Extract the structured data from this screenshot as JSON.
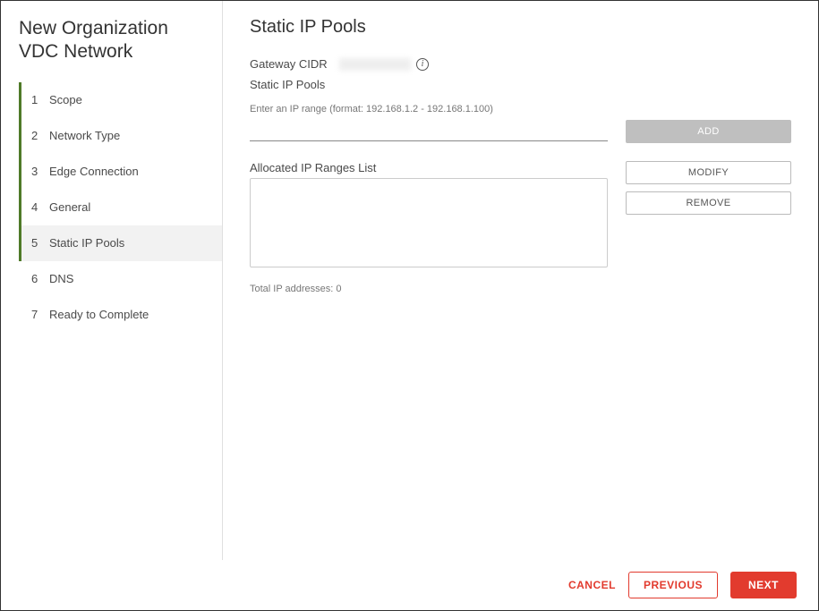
{
  "wizard": {
    "title": "New Organization VDC Network",
    "active_step": 5,
    "steps": [
      {
        "num": "1",
        "label": "Scope"
      },
      {
        "num": "2",
        "label": "Network Type"
      },
      {
        "num": "3",
        "label": "Edge Connection"
      },
      {
        "num": "4",
        "label": "General"
      },
      {
        "num": "5",
        "label": "Static IP Pools"
      },
      {
        "num": "6",
        "label": "DNS"
      },
      {
        "num": "7",
        "label": "Ready to Complete"
      }
    ]
  },
  "main": {
    "title": "Static IP Pools",
    "gateway_label": "Gateway CIDR",
    "gateway_value": "",
    "subheader": "Static IP Pools",
    "hint": "Enter an IP range (format: 192.168.1.2 - 192.168.1.100)",
    "add_label": "ADD",
    "alloc_label": "Allocated IP Ranges List",
    "modify_label": "MODIFY",
    "remove_label": "REMOVE",
    "total_label": "Total IP addresses: 0"
  },
  "footer": {
    "cancel": "CANCEL",
    "previous": "PREVIOUS",
    "next": "NEXT"
  },
  "colors": {
    "accent": "#e23b2e",
    "step_bar": "#4f7a28",
    "border": "#e0e0e0",
    "disabled_btn": "#bfbfbf"
  }
}
